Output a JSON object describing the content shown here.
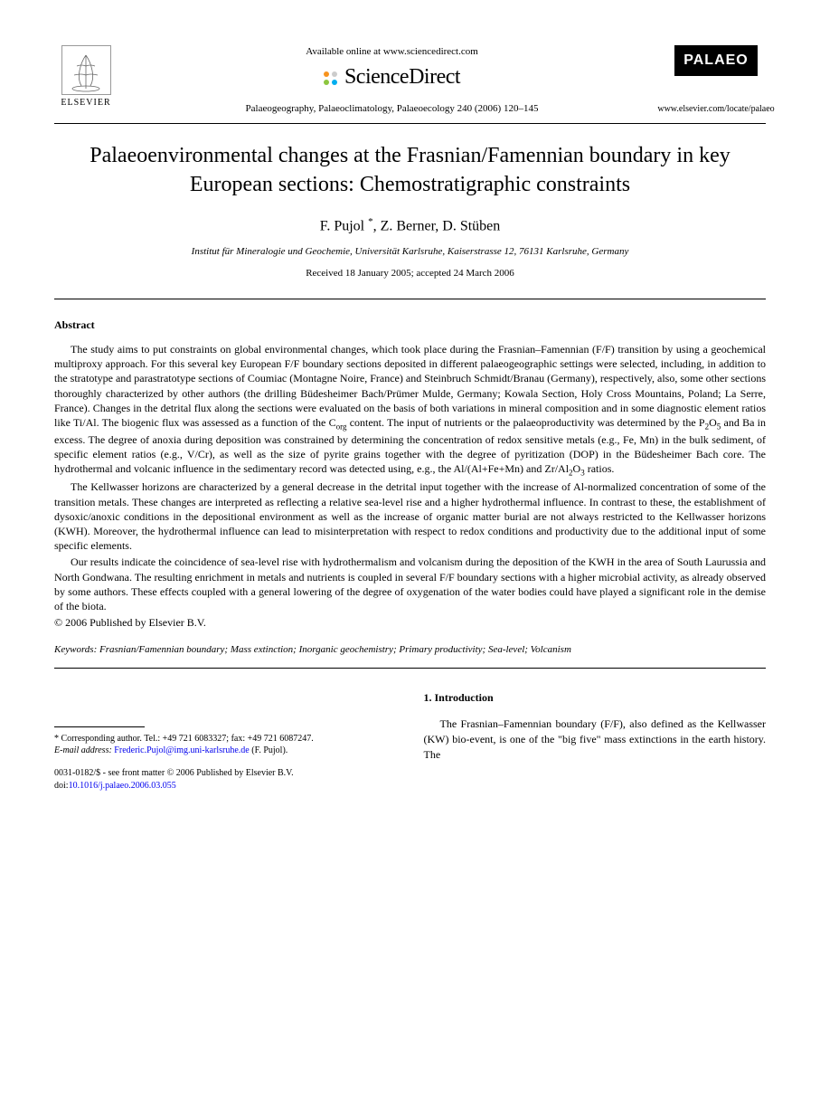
{
  "header": {
    "elsevier_label": "ELSEVIER",
    "available_online": "Available online at www.sciencedirect.com",
    "sciencedirect": "ScienceDirect",
    "sd_dot_colors": [
      "#f7941e",
      "#cccccc",
      "#8dc63f",
      "#00aeef"
    ],
    "journal_reference": "Palaeogeography, Palaeoclimatology, Palaeoecology 240 (2006) 120–145",
    "palaeo_badge": "PALAEO",
    "journal_url": "www.elsevier.com/locate/palaeo"
  },
  "article": {
    "title": "Palaeoenvironmental changes at the Frasnian/Famennian boundary in key European sections: Chemostratigraphic constraints",
    "authors_html": "F. Pujol *, Z. Berner, D. Stüben",
    "author1": "F. Pujol",
    "author2": "Z. Berner",
    "author3": "D. Stüben",
    "corresponding_marker": "*",
    "affiliation": "Institut für Mineralogie und Geochemie, Universität Karlsruhe, Kaiserstrasse 12, 76131 Karlsruhe, Germany",
    "dates": "Received 18 January 2005; accepted 24 March 2006"
  },
  "abstract": {
    "heading": "Abstract",
    "p1": "The study aims to put constraints on global environmental changes, which took place during the Frasnian–Famennian (F/F) transition by using a geochemical multiproxy approach. For this several key European F/F boundary sections deposited in different palaeogeographic settings were selected, including, in addition to the stratotype and parastratotype sections of Coumiac (Montagne Noire, France) and Steinbruch Schmidt/Branau (Germany), respectively, also, some other sections thoroughly characterized by other authors (the drilling Büdesheimer Bach/Prümer Mulde, Germany; Kowala Section, Holy Cross Mountains, Poland; La Serre, France). Changes in the detrital flux along the sections were evaluated on the basis of both variations in mineral composition and in some diagnostic element ratios like Ti/Al. The biogenic flux was assessed as a function of the Corg content. The input of nutrients or the palaeoproductivity was determined by the P2O5 and Ba in excess. The degree of anoxia during deposition was constrained by determining the concentration of redox sensitive metals (e.g., Fe, Mn) in the bulk sediment, of specific element ratios (e.g., V/Cr), as well as the size of pyrite grains together with the degree of pyritization (DOP) in the Büdesheimer Bach core. The hydrothermal and volcanic influence in the sedimentary record was detected using, e.g., the Al/(Al+Fe+Mn) and Zr/Al2O3 ratios.",
    "p2": "The Kellwasser horizons are characterized by a general decrease in the detrital input together with the increase of Al-normalized concentration of some of the transition metals. These changes are interpreted as reflecting a relative sea-level rise and a higher hydrothermal influence. In contrast to these, the establishment of dysoxic/anoxic conditions in the depositional environment as well as the increase of organic matter burial are not always restricted to the Kellwasser horizons (KWH). Moreover, the hydrothermal influence can lead to misinterpretation with respect to redox conditions and productivity due to the additional input of some specific elements.",
    "p3": "Our results indicate the coincidence of sea-level rise with hydrothermalism and volcanism during the deposition of the KWH in the area of South Laurussia and North Gondwana. The resulting enrichment in metals and nutrients is coupled in several F/F boundary sections with a higher microbial activity, as already observed by some authors. These effects coupled with a general lowering of the degree of oxygenation of the water bodies could have played a significant role in the demise of the biota.",
    "copyright": "© 2006 Published by Elsevier B.V."
  },
  "keywords": {
    "label": "Keywords:",
    "text": "Frasnian/Famennian boundary; Mass extinction; Inorganic geochemistry; Primary productivity; Sea-level; Volcanism"
  },
  "footnotes": {
    "corresponding": "* Corresponding author. Tel.: +49 721 6083327; fax: +49 721 6087247.",
    "email_label": "E-mail address:",
    "email": "Frederic.Pujol@img.uni-karlsruhe.de",
    "email_suffix": "(F. Pujol).",
    "issn": "0031-0182/$ - see front matter © 2006 Published by Elsevier B.V.",
    "doi_label": "doi:",
    "doi": "10.1016/j.palaeo.2006.03.055"
  },
  "introduction": {
    "heading": "1. Introduction",
    "text": "The Frasnian–Famennian boundary (F/F), also defined as the Kellwasser (KW) bio-event, is one of the \"big five\" mass extinctions in the earth history. The"
  }
}
